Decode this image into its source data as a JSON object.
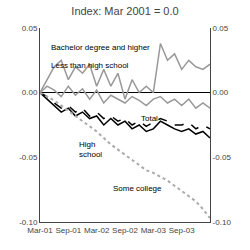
{
  "chart_data": {
    "type": "line",
    "title": "Index: Mar 2001 = 0.0",
    "categories": [
      "Mar-01",
      null,
      null,
      null,
      "Sep-01",
      null,
      null,
      null,
      "Mar-02",
      null,
      null,
      null,
      "Sep-02",
      null,
      null,
      null,
      "Mar-03",
      null,
      null,
      null,
      "Sep-03",
      null,
      null,
      null,
      null
    ],
    "series": [
      {
        "color": "#999999",
        "line_style": "solid",
        "values": [
          0.0,
          0.01,
          0.02,
          0.025,
          0.01,
          0.02,
          0.015,
          0.022,
          0.005,
          0.018,
          0.005,
          0.015,
          -0.005,
          0.01,
          0.0,
          0.005,
          0.0,
          0.038,
          0.025,
          0.03,
          0.018,
          0.025,
          0.02,
          0.018,
          0.022
        ]
      },
      {
        "color": "#999999",
        "line_style": "solid",
        "values": [
          0.0,
          0.005,
          0.002,
          -0.003,
          0.005,
          -0.002,
          0.003,
          -0.005,
          0.002,
          -0.008,
          -0.002,
          -0.005,
          -0.008,
          -0.003,
          -0.006,
          -0.01,
          -0.005,
          -0.003,
          -0.008,
          -0.005,
          -0.01,
          -0.005,
          -0.012,
          -0.008,
          -0.012
        ]
      },
      {
        "color": "#000000",
        "line_style": "solid",
        "values": [
          0.0,
          -0.005,
          -0.01,
          -0.015,
          -0.012,
          -0.018,
          -0.015,
          -0.02,
          -0.018,
          -0.025,
          -0.02,
          -0.025,
          -0.022,
          -0.028,
          -0.025,
          -0.03,
          -0.028,
          -0.022,
          -0.025,
          -0.028,
          -0.03,
          -0.028,
          -0.032,
          -0.03,
          -0.035
        ]
      },
      {
        "color": "#000000",
        "line_style": "dashed",
        "values": [
          0.0,
          -0.003,
          -0.008,
          -0.012,
          -0.01,
          -0.015,
          -0.012,
          -0.018,
          -0.015,
          -0.02,
          -0.018,
          -0.022,
          -0.02,
          -0.025,
          -0.022,
          -0.026,
          -0.023,
          -0.02,
          -0.022,
          -0.025,
          -0.025,
          -0.023,
          -0.028,
          -0.025,
          -0.028
        ]
      },
      {
        "color": "#aaaaaa",
        "line_style": "dotted",
        "values": [
          0.0,
          -0.003,
          -0.006,
          -0.01,
          -0.014,
          -0.018,
          -0.022,
          -0.026,
          -0.03,
          -0.035,
          -0.04,
          -0.044,
          -0.048,
          -0.052,
          -0.056,
          -0.06,
          -0.062,
          -0.065,
          -0.068,
          -0.072,
          -0.076,
          -0.08,
          -0.084,
          -0.09,
          -0.097
        ]
      }
    ],
    "ylim": [
      -0.1,
      0.05
    ],
    "yticks": [
      {
        "value": -0.1,
        "label": "-0.10"
      },
      {
        "value": -0.05,
        "label": "-0.05"
      },
      {
        "value": 0.0,
        "label": "0.00"
      },
      0.05
    ],
    "y2lim": [
      -0.1,
      0.05
    ],
    "y2ticks": [
      {
        "value": -0.1,
        "label": "-0.10"
      },
      {
        "value": -0.05,
        "label": "-0.05"
      },
      {
        "value": 0.0,
        "label": "0.00"
      },
      0.05
    ],
    "grid": false,
    "annotations": [
      "Bachelor degree and higher",
      "Less than high school",
      "High\nschool",
      "Total",
      "Some college"
    ]
  }
}
